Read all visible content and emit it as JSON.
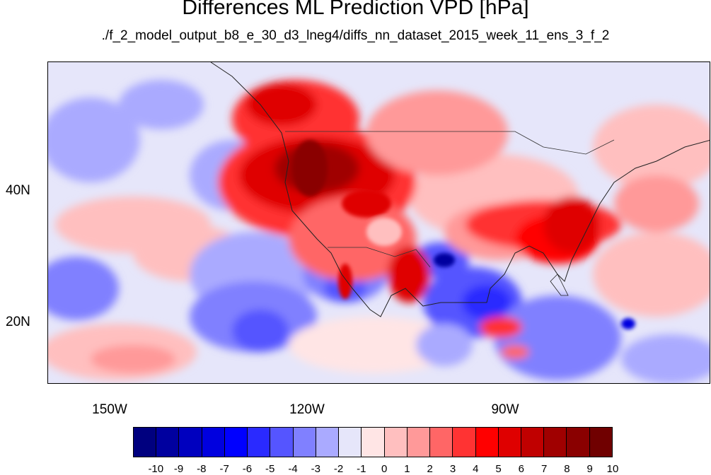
{
  "title": "Differences ML Prediction VPD [hPa]",
  "subtitle": "./f_2_model_output_b8_e_30_d3_lneg4/diffs_nn_dataset_2015_week_11_ens_3_f_2",
  "x_ticks": [
    "150W",
    "120W",
    "90W"
  ],
  "y_ticks": [
    "40N",
    "20N"
  ],
  "colorbar": {
    "labels": [
      "-10",
      "-9",
      "-8",
      "-7",
      "-6",
      "-5",
      "-4",
      "-3",
      "-2",
      "-1",
      "0",
      "1",
      "2",
      "3",
      "4",
      "5",
      "6",
      "7",
      "8",
      "9",
      "10"
    ],
    "colors": [
      "#00007f",
      "#00009f",
      "#0000bf",
      "#0000df",
      "#0000ff",
      "#2a2aff",
      "#5555ff",
      "#8080ff",
      "#aaaaff",
      "#e6e6fa",
      "#ffe5e5",
      "#ffbfbf",
      "#ff9999",
      "#ff6666",
      "#ff3333",
      "#ff0000",
      "#df0000",
      "#c00000",
      "#a00000",
      "#8a0000",
      "#700000"
    ]
  }
}
